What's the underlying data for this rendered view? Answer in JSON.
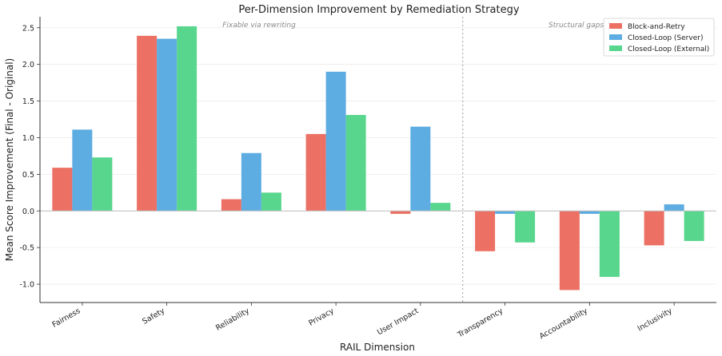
{
  "chart_data": {
    "type": "bar",
    "title": "Per-Dimension Improvement by Remediation Strategy",
    "xlabel": "RAIL Dimension",
    "ylabel": "Mean Score Improvement (Final - Original)",
    "categories": [
      "Fairness",
      "Safety",
      "Reliability",
      "Privacy",
      "User Impact",
      "Transparency",
      "Accountability",
      "Inclusivity"
    ],
    "series": [
      {
        "name": "Block-and-Retry",
        "color": "#EC7063",
        "values": [
          0.59,
          2.39,
          0.16,
          1.05,
          -0.04,
          -0.55,
          -1.08,
          -0.47
        ]
      },
      {
        "name": "Closed-Loop (Server)",
        "color": "#5DADE2",
        "values": [
          1.11,
          2.35,
          0.79,
          1.9,
          1.15,
          -0.04,
          -0.04,
          0.09
        ]
      },
      {
        "name": "Closed-Loop (External)",
        "color": "#58D68D",
        "values": [
          0.73,
          2.52,
          0.25,
          1.31,
          0.11,
          -0.43,
          -0.9,
          -0.41
        ]
      }
    ],
    "ylim": [
      -1.25,
      2.65
    ],
    "yticks": [
      "-1.0",
      "-0.5",
      "0.0",
      "0.5",
      "1.0",
      "1.5",
      "2.0",
      "2.5"
    ],
    "ytick_values": [
      -1.0,
      -0.5,
      0.0,
      0.5,
      1.0,
      1.5,
      2.0,
      2.5
    ],
    "grid": "horizontal, light",
    "legend_position": "top-right",
    "annotations": [
      {
        "text": "Fixable via rewriting"
      },
      {
        "text": "Structural gaps"
      }
    ],
    "divider_after_category": "User Impact"
  }
}
